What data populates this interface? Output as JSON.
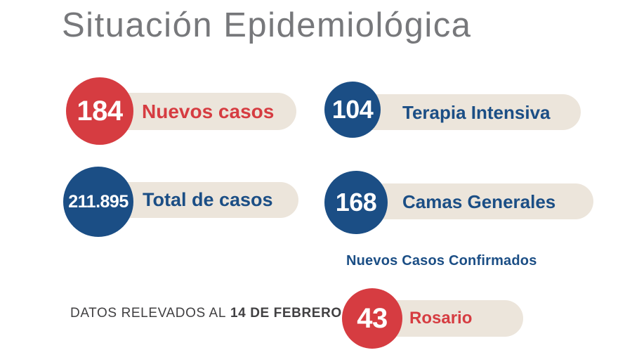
{
  "title": "Situación Epidemiológica",
  "colors": {
    "red": "#D63C41",
    "blue": "#1B4E85",
    "pill_beige": "#ECE5DB",
    "title_gray": "#77787B",
    "footer_text": "#414042"
  },
  "stats": [
    {
      "value": "184",
      "label": "Nuevos casos",
      "accent": "#D63C41"
    },
    {
      "value": "104",
      "label": "Terapia Intensiva",
      "accent": "#1B4E85"
    },
    {
      "value": "211.895",
      "label": "Total de casos",
      "accent": "#1B4E85"
    },
    {
      "value": "168",
      "label": "Camas Generales",
      "accent": "#1B4E85"
    }
  ],
  "confirmed": {
    "heading": "Nuevos Casos Confirmados",
    "items": [
      {
        "value": "43",
        "label": "Rosario",
        "accent": "#D63C41"
      }
    ]
  },
  "footer": {
    "prefix": "DATOS RELEVADOS AL",
    "date": "14 DE FEBRERO"
  },
  "chart_data": {
    "type": "table",
    "title": "Situación Epidemiológica",
    "stats": [
      {
        "label": "Nuevos casos",
        "value": 184
      },
      {
        "label": "Terapia Intensiva",
        "value": 104
      },
      {
        "label": "Total de casos",
        "value": 211895
      },
      {
        "label": "Camas Generales",
        "value": 168
      },
      {
        "label": "Nuevos Casos Confirmados - Rosario",
        "value": 43
      }
    ],
    "note": "DATOS RELEVADOS AL 14 DE FEBRERO"
  }
}
